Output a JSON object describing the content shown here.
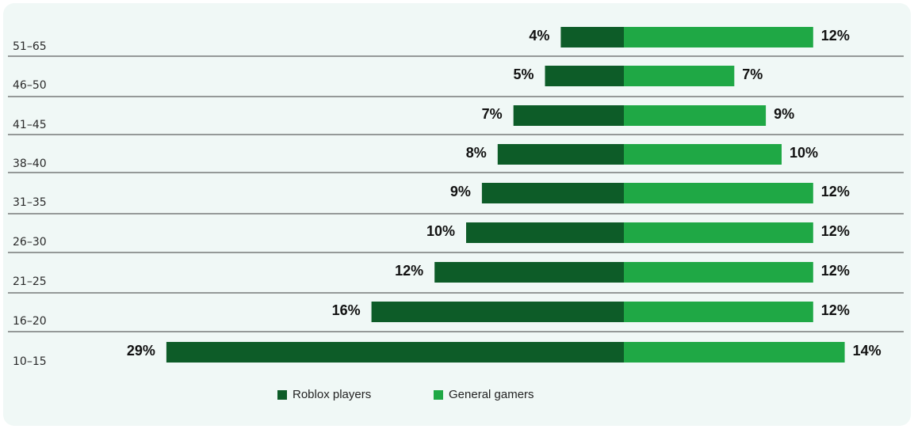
{
  "chart_data": {
    "type": "bar",
    "orientation": "horizontal-diverging",
    "categories": [
      "51–65",
      "46–50",
      "41–45",
      "38–40",
      "31–35",
      "26–30",
      "21–25",
      "16–20",
      "10–15"
    ],
    "series": [
      {
        "name": "Roblox players",
        "values": [
          4,
          5,
          7,
          8,
          9,
          10,
          12,
          16,
          29
        ],
        "color": "#0d5c28",
        "direction": "left"
      },
      {
        "name": "General gamers",
        "values": [
          12,
          7,
          9,
          10,
          12,
          12,
          12,
          12,
          14
        ],
        "color": "#1fa845",
        "direction": "right"
      }
    ],
    "value_suffix": "%",
    "legend_position": "bottom-center",
    "grid": "row separators"
  }
}
